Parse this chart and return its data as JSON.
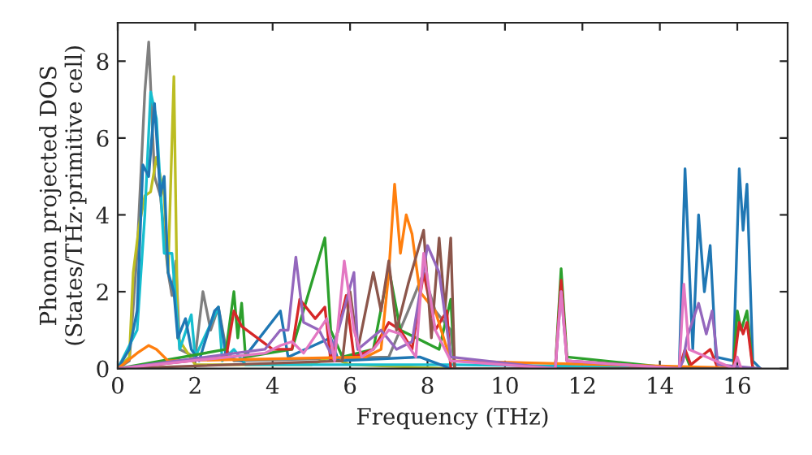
{
  "chart_data": {
    "type": "line",
    "xlabel": "Frequency (THz)",
    "ylabel": "Phonon projected DOS\n(States/THz·primitive cell)",
    "xlim": [
      0,
      17.3
    ],
    "ylim": [
      0,
      9
    ],
    "xticks": [
      0,
      2,
      4,
      6,
      8,
      10,
      12,
      14,
      16
    ],
    "yticks": [
      0,
      2,
      4,
      6,
      8
    ],
    "grid": false,
    "legend": false,
    "marker": "none",
    "line_style": "solid",
    "series": [
      {
        "color": "#7f7f7f",
        "x": [
          0,
          0.3,
          0.5,
          0.7,
          0.8,
          0.95,
          1.1,
          1.3,
          1.4,
          1.5,
          1.6,
          2.0,
          2.2,
          2.4,
          2.6,
          2.8,
          3.0,
          7.0,
          7.5,
          7.9,
          8.2,
          8.6,
          8.7,
          16.6
        ],
        "values": [
          0,
          0.2,
          3,
          7.2,
          8.5,
          5,
          4.5,
          2.5,
          1.9,
          2.8,
          0.5,
          0.3,
          2.0,
          1.0,
          1.6,
          0.5,
          0.2,
          0.3,
          1.5,
          2.5,
          1.5,
          1.0,
          0,
          0
        ]
      },
      {
        "color": "#bcbd22",
        "x": [
          0,
          0.3,
          0.4,
          0.55,
          0.7,
          0.85,
          1.0,
          1.2,
          1.3,
          1.45,
          1.55,
          2.0,
          5.0,
          5.5,
          6.0,
          8.6,
          16.6
        ],
        "values": [
          0,
          0.3,
          2.5,
          3.7,
          4.5,
          4.6,
          5.5,
          4.5,
          2.5,
          7.6,
          0.8,
          0.1,
          0.1,
          0.3,
          0.1,
          0,
          0
        ]
      },
      {
        "color": "#17becf",
        "x": [
          0,
          0.5,
          0.7,
          0.85,
          1.0,
          1.2,
          1.4,
          1.6,
          1.9,
          2.0,
          2.6,
          2.7,
          3.0,
          3.3,
          8.6,
          16.6
        ],
        "values": [
          0,
          1,
          4,
          7.2,
          6.5,
          3,
          3,
          0.5,
          1.4,
          0.3,
          1.6,
          0.2,
          0.5,
          0.1,
          0.1,
          0
        ]
      },
      {
        "color": "#1f77b4",
        "x": [
          0,
          0.3,
          0.5,
          0.65,
          0.8,
          0.95,
          1.1,
          1.2,
          1.3,
          1.45,
          1.55,
          1.75,
          1.9,
          2.1,
          2.5,
          2.6,
          2.8,
          3.2,
          4.2,
          4.4,
          5.5,
          5.7,
          7.8,
          8.6,
          14.5,
          14.65,
          14.85,
          15.0,
          15.15,
          15.3,
          15.45,
          15.9,
          16.05,
          16.15,
          16.25,
          16.4,
          16.6
        ],
        "values": [
          0,
          0.5,
          1.5,
          5.3,
          5,
          6.9,
          4.5,
          5.0,
          2.5,
          2.0,
          0.8,
          1.3,
          0.5,
          0.2,
          1.5,
          1.6,
          0.3,
          0.2,
          1.5,
          0.3,
          0.8,
          0.2,
          0.3,
          0,
          0,
          5.2,
          0.5,
          4.0,
          2.0,
          3.2,
          0.3,
          0.2,
          5.2,
          3.6,
          4.8,
          0.2,
          0
        ]
      },
      {
        "color": "#2ca02c",
        "x": [
          0,
          2.8,
          3.0,
          3.1,
          3.2,
          3.3,
          4.5,
          5.35,
          5.5,
          5.8,
          6.6,
          7.0,
          7.3,
          8.3,
          8.6,
          8.7,
          11.3,
          11.45,
          11.6,
          14.5,
          14.65,
          14.8,
          15.9,
          16.0,
          16.1,
          16.25,
          16.4,
          16.6
        ],
        "values": [
          0,
          0.5,
          2.0,
          0.8,
          1.7,
          0.3,
          0.5,
          3.4,
          1.0,
          0.3,
          0.5,
          2.6,
          1.0,
          0.5,
          1.8,
          0,
          0,
          2.6,
          0.3,
          0,
          0.4,
          0,
          0,
          1.5,
          1.0,
          1.5,
          0,
          0
        ]
      },
      {
        "color": "#d62728",
        "x": [
          0,
          2.8,
          3.0,
          3.2,
          4.0,
          4.5,
          4.7,
          5.1,
          5.35,
          5.5,
          5.9,
          6.1,
          6.6,
          7.0,
          7.3,
          7.6,
          7.9,
          8.2,
          8.5,
          8.6,
          11.3,
          11.45,
          11.6,
          14.5,
          14.65,
          14.8,
          15.3,
          15.5,
          15.9,
          16.05,
          16.15,
          16.25,
          16.4,
          16.6
        ],
        "values": [
          0,
          0.3,
          1.5,
          1.1,
          0.5,
          0.5,
          1.8,
          1.3,
          1.6,
          0.2,
          1.9,
          0.3,
          0.5,
          1.2,
          1.0,
          0.5,
          2.5,
          1.0,
          1.5,
          0,
          0,
          2.3,
          0.2,
          0,
          0.5,
          0.1,
          0.5,
          0,
          0,
          1.2,
          0.9,
          1.2,
          0,
          0
        ]
      },
      {
        "color": "#ff7f0e",
        "x": [
          0,
          0.5,
          0.8,
          1.0,
          1.3,
          6.4,
          6.8,
          7.0,
          7.15,
          7.3,
          7.45,
          7.6,
          7.8,
          8.2,
          8.6,
          16.6
        ],
        "values": [
          0,
          0.4,
          0.6,
          0.5,
          0.2,
          0.3,
          0.5,
          2.5,
          4.8,
          3.0,
          4.0,
          3.5,
          2.0,
          1.5,
          0.2,
          0
        ]
      },
      {
        "color": "#8c564b",
        "x": [
          0,
          5.8,
          6.0,
          6.2,
          6.6,
          6.8,
          7.0,
          7.2,
          7.5,
          7.9,
          8.1,
          8.3,
          8.45,
          8.6,
          8.7,
          16.6
        ],
        "values": [
          0,
          0.2,
          2.0,
          0.5,
          2.5,
          1.5,
          2.8,
          1.0,
          2.2,
          3.6,
          0.8,
          3.4,
          1.5,
          3.4,
          0,
          0
        ]
      },
      {
        "color": "#9467bd",
        "x": [
          0,
          3.8,
          4.2,
          4.4,
          4.6,
          4.8,
          5.2,
          5.5,
          5.7,
          6.1,
          6.2,
          6.8,
          7.2,
          7.6,
          8.0,
          8.3,
          8.6,
          11.3,
          11.45,
          11.6,
          14.5,
          14.6,
          14.7,
          15.0,
          15.2,
          15.35,
          15.5,
          16.6
        ],
        "values": [
          0,
          0.5,
          1.0,
          1.0,
          2.9,
          1.2,
          1.0,
          0.4,
          1.0,
          2.5,
          0.5,
          1.0,
          0.5,
          0.7,
          3.2,
          2.5,
          0.3,
          0,
          2.0,
          0.2,
          0,
          0.2,
          0.8,
          1.7,
          0.9,
          1.5,
          0.1,
          0
        ]
      },
      {
        "color": "#e377c2",
        "x": [
          0,
          3.8,
          4.2,
          4.5,
          4.8,
          5.4,
          5.6,
          5.85,
          6.1,
          6.3,
          6.6,
          7.0,
          7.3,
          7.7,
          7.9,
          8.2,
          8.6,
          11.3,
          11.45,
          11.6,
          14.5,
          14.62,
          14.75,
          15.9,
          16.0,
          16.1
        ],
        "values": [
          0,
          0.4,
          0.6,
          0.7,
          0.4,
          1.3,
          0.2,
          2.8,
          1.0,
          0.3,
          0.5,
          1.0,
          0.9,
          0.3,
          3.0,
          1.0,
          0.2,
          0,
          2.0,
          0.2,
          0,
          2.2,
          0.5,
          0,
          0.3,
          0
        ]
      }
    ]
  }
}
